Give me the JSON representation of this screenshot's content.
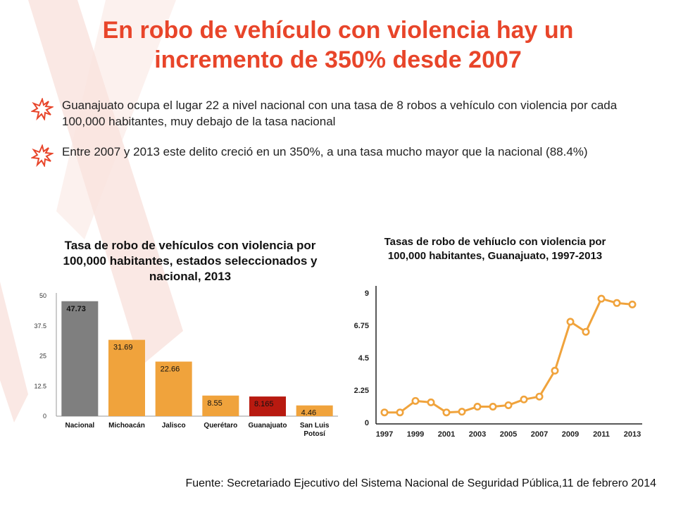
{
  "slide": {
    "title": "En robo de vehículo con violencia hay un incremento de 350% desde 2007",
    "accent_color": "#e8452a",
    "bullets": [
      {
        "icon": "sparkle-burst-icon",
        "text": "Guanajuato ocupa el lugar 22 a nivel nacional con una tasa de 8 robos a vehículo con violencia por cada 100,000 habitantes, muy debajo de la tasa nacional"
      },
      {
        "icon": "sparkle-burst-icon",
        "text": "Entre 2007 y 2013 este delito creció en un 350%, a una tasa mucho mayor que la nacional (88.4%)"
      }
    ],
    "source": "Fuente: Secretariado Ejecutivo del Sistema Nacional de Seguridad Pública,11 de febrero 2014"
  },
  "chart_data": [
    {
      "type": "bar",
      "title": "Tasa de robo de vehículos con violencia por 100,000 habitantes, estados seleccionados y nacional, 2013",
      "categories": [
        "Nacional",
        "Michoacán",
        "Jalisco",
        "Querétaro",
        "Guanajuato",
        "San Luis Potosí"
      ],
      "values": [
        47.73,
        31.69,
        22.66,
        8.55,
        8.165,
        4.46
      ],
      "data_labels": [
        "47.73",
        "31.69",
        "22.66",
        "8.55",
        "8.165",
        "4.46"
      ],
      "colors": [
        "#7f7f7f",
        "#f0a33c",
        "#f0a33c",
        "#f0a33c",
        "#b81a10",
        "#f0a33c"
      ],
      "yticks": [
        "0",
        "12.5",
        "25",
        "37.5",
        "50"
      ],
      "ylim": [
        0,
        50
      ],
      "grid": false,
      "xlabel": "",
      "ylabel": ""
    },
    {
      "type": "line",
      "title": "Tasas de robo de vehíuclo con violencia por 100,000 habitantes, Guanajuato, 1997-2013",
      "x": [
        1997,
        1998,
        1999,
        2000,
        2001,
        2002,
        2003,
        2004,
        2005,
        2006,
        2007,
        2008,
        2009,
        2010,
        2011,
        2012,
        2013
      ],
      "values": [
        0.7,
        0.7,
        1.5,
        1.4,
        0.7,
        0.75,
        1.1,
        1.1,
        1.2,
        1.6,
        1.8,
        3.6,
        7.0,
        6.3,
        8.6,
        8.3,
        8.2
      ],
      "xticks": [
        "1997",
        "1999",
        "2001",
        "2003",
        "2005",
        "2007",
        "2009",
        "2011",
        "2013"
      ],
      "yticks": [
        "0",
        "2.25",
        "4.5",
        "6.75",
        "9"
      ],
      "ylim": [
        0,
        9
      ],
      "color": "#f0a33c",
      "grid": false,
      "xlabel": "",
      "ylabel": ""
    }
  ]
}
